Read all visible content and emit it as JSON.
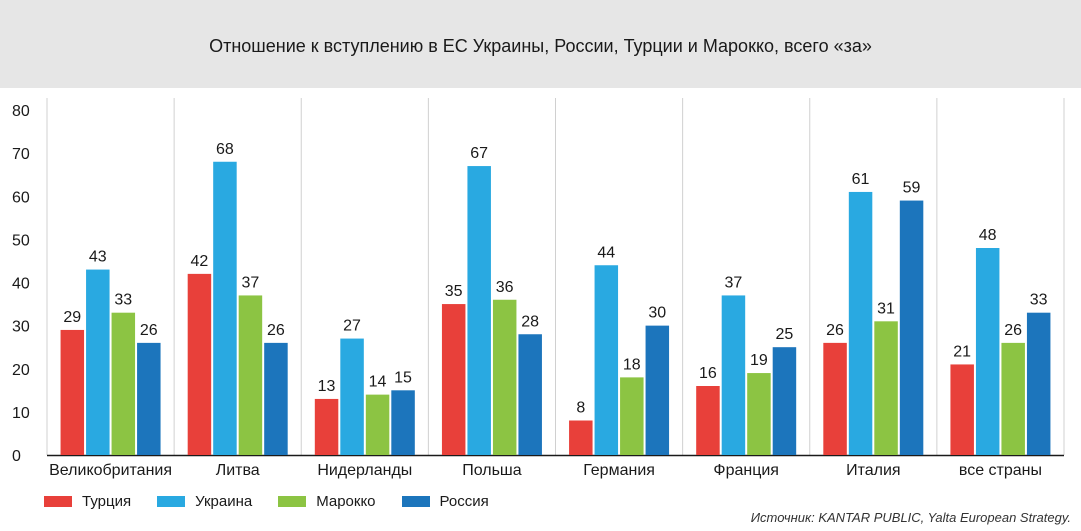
{
  "header": {
    "title": "Отношение к вступлению в ЕС Украины, России, Турции и Марокко, всего «за»"
  },
  "source": "Источник: KANTAR PUBLIC, Yalta European Strategy.",
  "chart_data": {
    "type": "bar",
    "title": "Отношение к вступлению в ЕС Украины, России, Турции и Марокко, всего «за»",
    "categories": [
      "Великобритания",
      "Литва",
      "Нидерланды",
      "Польша",
      "Германия",
      "Франция",
      "Италия",
      "все страны"
    ],
    "series": [
      {
        "name": "Турция",
        "color": "#e8403a",
        "values": [
          29,
          42,
          13,
          35,
          8,
          16,
          26,
          21
        ]
      },
      {
        "name": "Украина",
        "color": "#29a9e1",
        "values": [
          43,
          68,
          27,
          67,
          44,
          37,
          61,
          48
        ]
      },
      {
        "name": "Марокко",
        "color": "#8cc443",
        "values": [
          33,
          37,
          14,
          36,
          18,
          19,
          31,
          26
        ]
      },
      {
        "name": "Россия",
        "color": "#1c75bc",
        "values": [
          26,
          26,
          15,
          28,
          30,
          25,
          59,
          33
        ]
      }
    ],
    "yticks": [
      0,
      10,
      20,
      30,
      40,
      50,
      60,
      70,
      80
    ],
    "ylim": [
      0,
      80
    ],
    "grid": "vertical separators between categories",
    "legend_position": "bottom-left"
  }
}
